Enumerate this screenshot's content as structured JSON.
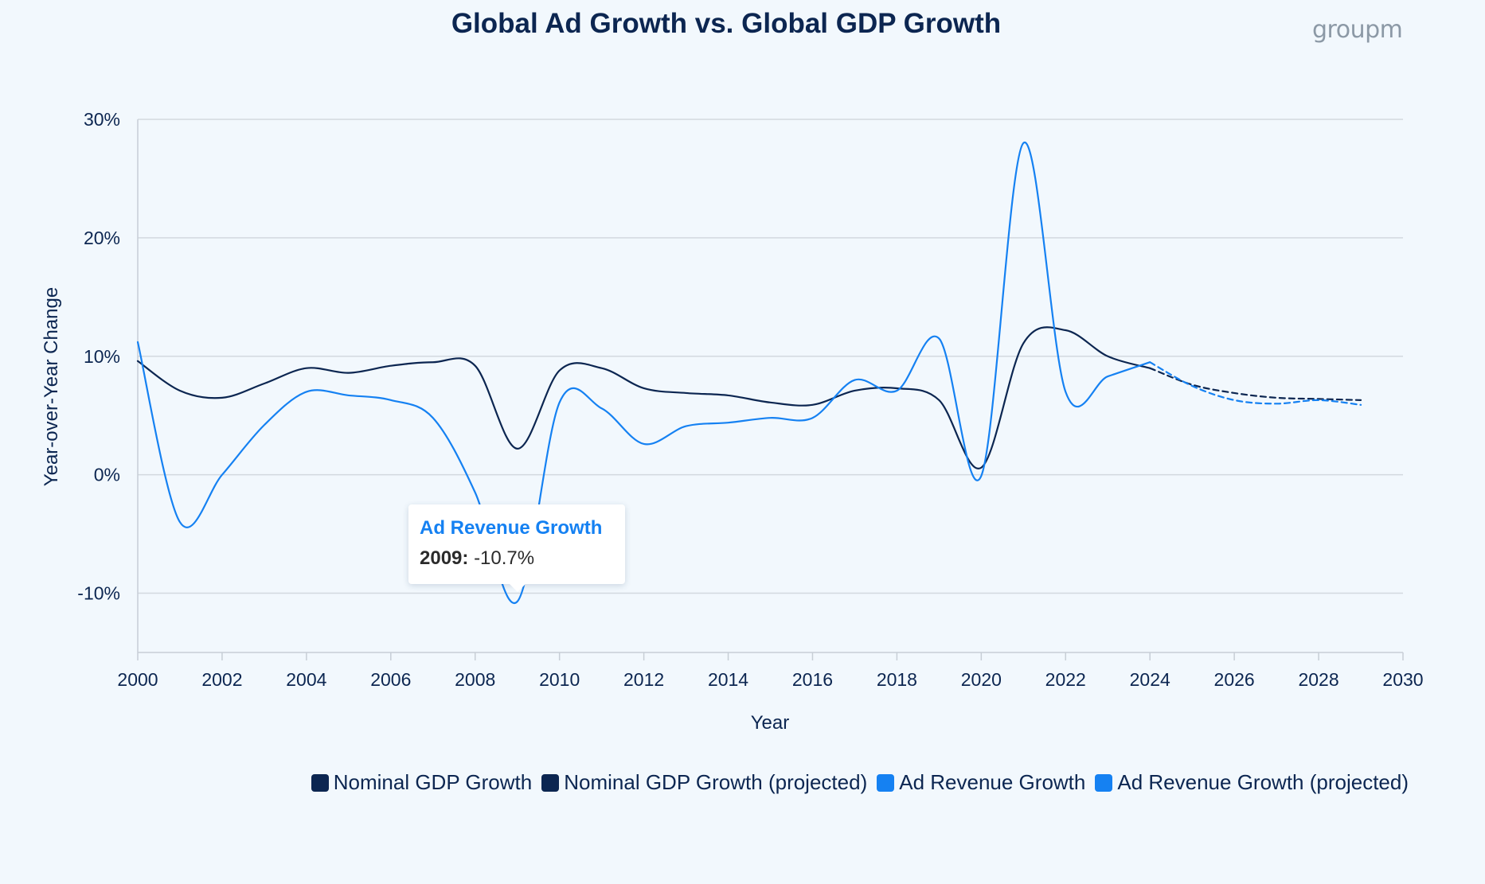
{
  "chart_data": {
    "type": "line",
    "title": "Global Ad Growth vs. Global GDP Growth",
    "brand": "groupm",
    "xlabel": "Year",
    "ylabel": "Year-over-Year Change",
    "xlim": [
      2000,
      2030
    ],
    "ylim": [
      -15,
      30
    ],
    "x_ticks": [
      2000,
      2002,
      2004,
      2006,
      2008,
      2010,
      2012,
      2014,
      2016,
      2018,
      2020,
      2022,
      2024,
      2026,
      2028,
      2030
    ],
    "x_tick_labels": [
      "2000",
      "2002",
      "2004",
      "2006",
      "2008",
      "2010",
      "2012",
      "2014",
      "2016",
      "2018",
      "2020",
      "2022",
      "2024",
      "2026",
      "2028",
      "2030"
    ],
    "y_ticks": [
      -10,
      0,
      10,
      20,
      30
    ],
    "y_tick_labels": [
      "-10%",
      "0%",
      "10%",
      "20%",
      "30%"
    ],
    "grid": true,
    "legend_position": "bottom-right",
    "series": [
      {
        "name": "Nominal GDP Growth",
        "color": "#0c2651",
        "style": "solid",
        "x": [
          2000,
          2001,
          2002,
          2003,
          2004,
          2005,
          2006,
          2007,
          2008,
          2009,
          2010,
          2011,
          2012,
          2013,
          2014,
          2015,
          2016,
          2017,
          2018,
          2019,
          2020,
          2021,
          2022,
          2023,
          2024
        ],
        "values": [
          9.6,
          7.1,
          6.5,
          7.7,
          9.0,
          8.6,
          9.2,
          9.5,
          9.2,
          2.2,
          8.8,
          9.0,
          7.3,
          6.9,
          6.7,
          6.1,
          5.9,
          7.1,
          7.3,
          6.3,
          0.6,
          11.1,
          12.2,
          10.0,
          9.0
        ]
      },
      {
        "name": "Nominal GDP Growth (projected)",
        "color": "#0c2651",
        "style": "dashed",
        "x": [
          2024,
          2025,
          2026,
          2027,
          2028,
          2029
        ],
        "values": [
          9.0,
          7.6,
          6.9,
          6.5,
          6.4,
          6.3
        ]
      },
      {
        "name": "Ad Revenue Growth",
        "color": "#1581f2",
        "style": "solid",
        "x": [
          2000,
          2001,
          2002,
          2003,
          2004,
          2005,
          2006,
          2007,
          2008,
          2009,
          2010,
          2011,
          2012,
          2013,
          2014,
          2015,
          2016,
          2017,
          2018,
          2019,
          2020,
          2021,
          2022,
          2023,
          2024
        ],
        "values": [
          11.2,
          -4.0,
          0.0,
          4.2,
          7.0,
          6.7,
          6.3,
          4.8,
          -1.5,
          -10.7,
          6.1,
          5.6,
          2.6,
          4.1,
          4.4,
          4.8,
          4.8,
          8.0,
          7.1,
          11.5,
          -0.1,
          28.0,
          7.0,
          8.3,
          9.5
        ]
      },
      {
        "name": "Ad Revenue Growth (projected)",
        "color": "#1581f2",
        "style": "dashed",
        "x": [
          2024,
          2025,
          2026,
          2027,
          2028,
          2029
        ],
        "values": [
          9.5,
          7.5,
          6.3,
          6.0,
          6.3,
          5.9
        ]
      }
    ],
    "tooltip": {
      "series": "Ad Revenue Growth",
      "year": "2009:",
      "value": "-10.7%",
      "x": 2009,
      "y": -10.7
    }
  }
}
